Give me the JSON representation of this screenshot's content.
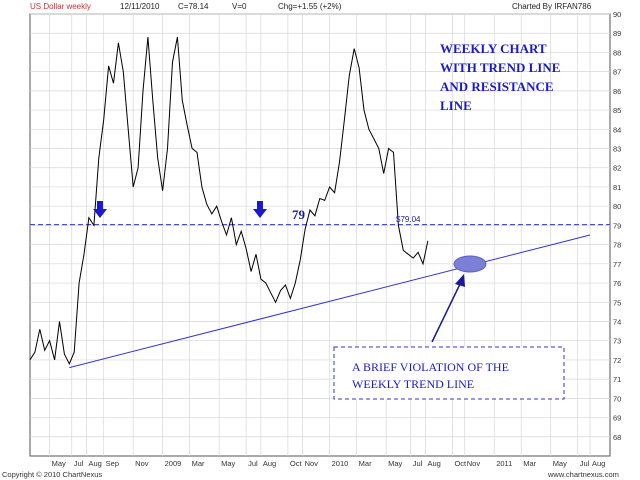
{
  "header": {
    "title": "US Dollar weekly",
    "date": "12/11/2010",
    "close": "C=78.14",
    "volume": "V=0",
    "change": "Chg=+1.55 (+2%)",
    "charted_by": "Charted By IRFAN786"
  },
  "footer": {
    "copyright": "Copyright © 2010 ChartNexus",
    "site": "www.chartnexus.com"
  },
  "colors": {
    "price": "#000000",
    "annotation": "#1a1acc",
    "trend": "#3333cc",
    "grid": "#d6d6d6",
    "ellipse": "#7b7fd6"
  },
  "chart_data": {
    "type": "line",
    "title": "US Dollar weekly",
    "ylim": [
      67,
      90
    ],
    "y_ticks": [
      68,
      69,
      70,
      71,
      72,
      73,
      74,
      75,
      76,
      77,
      78,
      79,
      80,
      81,
      82,
      83,
      84,
      85,
      86,
      87,
      88,
      89,
      90
    ],
    "grid": true,
    "x_tick_labels": [
      {
        "label": "May",
        "t": 0.04
      },
      {
        "label": "Jul",
        "t": 0.085
      },
      {
        "label": "Aug",
        "t": 0.115
      },
      {
        "label": "Sep",
        "t": 0.15
      },
      {
        "label": "Nov",
        "t": 0.21
      },
      {
        "label": "2009",
        "t": 0.27
      },
      {
        "label": "Mar",
        "t": 0.325
      },
      {
        "label": "May",
        "t": 0.385
      },
      {
        "label": "Jul",
        "t": 0.44
      },
      {
        "label": "Aug",
        "t": 0.47
      },
      {
        "label": "Oct",
        "t": 0.525
      },
      {
        "label": "Nov",
        "t": 0.555
      },
      {
        "label": "2010",
        "t": 0.61
      },
      {
        "label": "Mar",
        "t": 0.665
      },
      {
        "label": "May",
        "t": 0.725
      },
      {
        "label": "Jul",
        "t": 0.775
      },
      {
        "label": "Aug",
        "t": 0.805
      },
      {
        "label": "Oct",
        "t": 0.86
      },
      {
        "label": "Nov",
        "t": 0.885
      },
      {
        "label": "2011",
        "t": 0.945
      },
      {
        "label": "Mar",
        "t": 1.0
      },
      {
        "label": "May",
        "t": 1.06
      },
      {
        "label": "Jul",
        "t": 1.115
      },
      {
        "label": "Aug",
        "t": 1.14
      }
    ],
    "series": [
      {
        "name": "",
        "values": [
          [
            0.0,
            72.0
          ],
          [
            0.01,
            72.4
          ],
          [
            0.02,
            73.6
          ],
          [
            0.03,
            72.5
          ],
          [
            0.04,
            73.0
          ],
          [
            0.05,
            72.0
          ],
          [
            0.06,
            74.0
          ],
          [
            0.07,
            72.3
          ],
          [
            0.08,
            71.8
          ],
          [
            0.09,
            72.4
          ],
          [
            0.1,
            76.0
          ],
          [
            0.11,
            77.5
          ],
          [
            0.12,
            79.4
          ],
          [
            0.13,
            79.0
          ],
          [
            0.14,
            82.5
          ],
          [
            0.15,
            84.5
          ],
          [
            0.16,
            87.3
          ],
          [
            0.17,
            86.4
          ],
          [
            0.18,
            88.5
          ],
          [
            0.19,
            87.0
          ],
          [
            0.2,
            84.0
          ],
          [
            0.21,
            81.0
          ],
          [
            0.22,
            82.0
          ],
          [
            0.23,
            86.0
          ],
          [
            0.24,
            88.8
          ],
          [
            0.25,
            85.5
          ],
          [
            0.26,
            82.5
          ],
          [
            0.27,
            80.8
          ],
          [
            0.28,
            83.0
          ],
          [
            0.29,
            87.5
          ],
          [
            0.3,
            88.8
          ],
          [
            0.31,
            85.5
          ],
          [
            0.32,
            84.2
          ],
          [
            0.33,
            83.0
          ],
          [
            0.34,
            82.8
          ],
          [
            0.35,
            81.0
          ],
          [
            0.36,
            80.1
          ],
          [
            0.37,
            79.6
          ],
          [
            0.38,
            80.0
          ],
          [
            0.39,
            79.2
          ],
          [
            0.4,
            78.5
          ],
          [
            0.41,
            79.4
          ],
          [
            0.42,
            78.0
          ],
          [
            0.43,
            78.7
          ],
          [
            0.44,
            77.8
          ],
          [
            0.45,
            76.6
          ],
          [
            0.46,
            77.5
          ],
          [
            0.47,
            76.2
          ],
          [
            0.48,
            76.0
          ],
          [
            0.49,
            75.5
          ],
          [
            0.5,
            75.0
          ],
          [
            0.51,
            75.6
          ],
          [
            0.52,
            75.9
          ],
          [
            0.53,
            75.2
          ],
          [
            0.54,
            76.0
          ],
          [
            0.55,
            77.2
          ],
          [
            0.56,
            78.8
          ],
          [
            0.57,
            79.8
          ],
          [
            0.58,
            79.5
          ],
          [
            0.59,
            80.4
          ],
          [
            0.6,
            80.3
          ],
          [
            0.61,
            81.0
          ],
          [
            0.62,
            80.7
          ],
          [
            0.63,
            82.3
          ],
          [
            0.64,
            84.5
          ],
          [
            0.65,
            86.8
          ],
          [
            0.66,
            88.2
          ],
          [
            0.67,
            87.2
          ],
          [
            0.68,
            85.0
          ],
          [
            0.69,
            84.0
          ],
          [
            0.7,
            83.5
          ],
          [
            0.71,
            83.0
          ],
          [
            0.72,
            81.7
          ],
          [
            0.73,
            83.0
          ],
          [
            0.74,
            82.8
          ],
          [
            0.75,
            79.0
          ],
          [
            0.76,
            77.7
          ],
          [
            0.77,
            77.5
          ],
          [
            0.78,
            77.3
          ],
          [
            0.79,
            77.6
          ],
          [
            0.8,
            77.0
          ],
          [
            0.81,
            78.2
          ]
        ]
      }
    ],
    "resistance_line": {
      "y": 79.04,
      "label": "$79.04",
      "bold_label": "79"
    },
    "trend_line": {
      "from": [
        0.08,
        71.6
      ],
      "to": [
        1.14,
        78.5
      ]
    },
    "annotations": [
      {
        "lines": [
          "WEEKLY CHART",
          "WITH TREND LINE",
          "AND RESISTANCE",
          "LINE"
        ]
      },
      {
        "lines": [
          "A BRIEF VIOLATION OF THE",
          "WEEKLY TREND LINE"
        ]
      }
    ]
  }
}
